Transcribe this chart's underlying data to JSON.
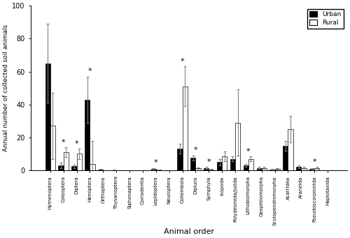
{
  "categories": [
    "Hymenoptera",
    "Coleoptera",
    "Diptera",
    "Hemiptera",
    "Orthoptera",
    "Thysanoptera",
    "Siphonaptera",
    "Corrodentia",
    "Lepidoptera",
    "Neuroptera",
    "Collembola",
    "Diplura",
    "Symphyla",
    "Isopoda",
    "Polydesmida/Julida",
    "Lithobiomorpha",
    "Geophilomorpha",
    "Scolopendromorpha",
    "Acarridea",
    "Araneida",
    "Pseudoscorpionida",
    "Haplotaxida"
  ],
  "urban_values": [
    65,
    3,
    2.5,
    43,
    0.5,
    0.2,
    0.1,
    0.1,
    1,
    0.1,
    13,
    7.5,
    1.5,
    5,
    7,
    3,
    1.5,
    0.5,
    15,
    2,
    1,
    0.1
  ],
  "rural_values": [
    27,
    11,
    10,
    4,
    0.1,
    0.1,
    0.1,
    0.1,
    0.3,
    0.1,
    51,
    1.2,
    0.4,
    8.5,
    29,
    7,
    1.5,
    0.8,
    25,
    1.5,
    1.5,
    0.1
  ],
  "urban_errors": [
    24,
    1.5,
    1.0,
    14,
    0.3,
    0.1,
    0.05,
    0.05,
    0.5,
    0.05,
    3,
    1.5,
    0.5,
    2,
    1.5,
    1.0,
    0.5,
    0.2,
    3,
    0.8,
    0.4,
    0.05
  ],
  "rural_errors": [
    20,
    3,
    3,
    14,
    0.1,
    0.1,
    0.05,
    0.05,
    0.2,
    0.05,
    12,
    0.5,
    0.3,
    3,
    20,
    1.5,
    0.5,
    0.3,
    8,
    0.7,
    0.5,
    0.1
  ],
  "significant": [
    false,
    true,
    true,
    true,
    false,
    false,
    false,
    false,
    true,
    false,
    true,
    true,
    true,
    false,
    false,
    true,
    false,
    false,
    false,
    false,
    true,
    false
  ],
  "ylabel": "Annual number of collected soil animals",
  "xlabel": "Animal order",
  "ylim": [
    0,
    100
  ],
  "yticks": [
    0,
    20,
    40,
    60,
    80,
    100
  ],
  "urban_color": "#000000",
  "rural_color": "#ffffff",
  "bar_width": 0.38,
  "figsize": [
    5.0,
    3.41
  ],
  "dpi": 100
}
